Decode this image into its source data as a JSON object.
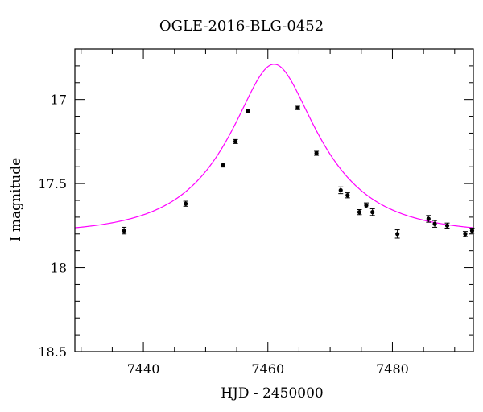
{
  "chart_data": {
    "type": "scatter",
    "title": "OGLE-2016-BLG-0452",
    "xlabel": "HJD - 2450000",
    "ylabel": "I magnitude",
    "xlim": [
      7429,
      7493
    ],
    "ylim": [
      18.5,
      16.7
    ],
    "y_inverted": true,
    "grid": false,
    "x_ticks": [
      7440,
      7460,
      7480
    ],
    "y_ticks": [
      17,
      17.5,
      18,
      18.5
    ],
    "x_tick_labels": [
      "7440",
      "7460",
      "7480"
    ],
    "y_tick_labels": [
      "17",
      "17.5",
      "18",
      "18.5"
    ],
    "series": [
      {
        "kind": "points-with-errorbars",
        "marker_color": "#000000",
        "points": [
          {
            "x": 7436.9,
            "y": 17.78,
            "err": 0.02
          },
          {
            "x": 7446.8,
            "y": 17.62,
            "err": 0.015
          },
          {
            "x": 7452.8,
            "y": 17.39,
            "err": 0.012
          },
          {
            "x": 7454.8,
            "y": 17.25,
            "err": 0.012
          },
          {
            "x": 7456.8,
            "y": 17.07,
            "err": 0.01
          },
          {
            "x": 7464.8,
            "y": 17.05,
            "err": 0.01
          },
          {
            "x": 7467.8,
            "y": 17.32,
            "err": 0.012
          },
          {
            "x": 7471.7,
            "y": 17.54,
            "err": 0.02
          },
          {
            "x": 7472.8,
            "y": 17.57,
            "err": 0.015
          },
          {
            "x": 7474.7,
            "y": 17.67,
            "err": 0.015
          },
          {
            "x": 7475.8,
            "y": 17.63,
            "err": 0.015
          },
          {
            "x": 7476.8,
            "y": 17.67,
            "err": 0.02
          },
          {
            "x": 7480.8,
            "y": 17.8,
            "err": 0.025
          },
          {
            "x": 7485.8,
            "y": 17.71,
            "err": 0.02
          },
          {
            "x": 7486.8,
            "y": 17.74,
            "err": 0.02
          },
          {
            "x": 7488.8,
            "y": 17.75,
            "err": 0.015
          },
          {
            "x": 7491.7,
            "y": 17.8,
            "err": 0.015
          },
          {
            "x": 7492.8,
            "y": 17.78,
            "err": 0.015
          }
        ]
      },
      {
        "kind": "model-curve",
        "color": "#ff00ff",
        "model": {
          "t0": 7461.0,
          "u0": 0.42,
          "tE": 13.5,
          "I_base": 17.8
        }
      }
    ]
  }
}
